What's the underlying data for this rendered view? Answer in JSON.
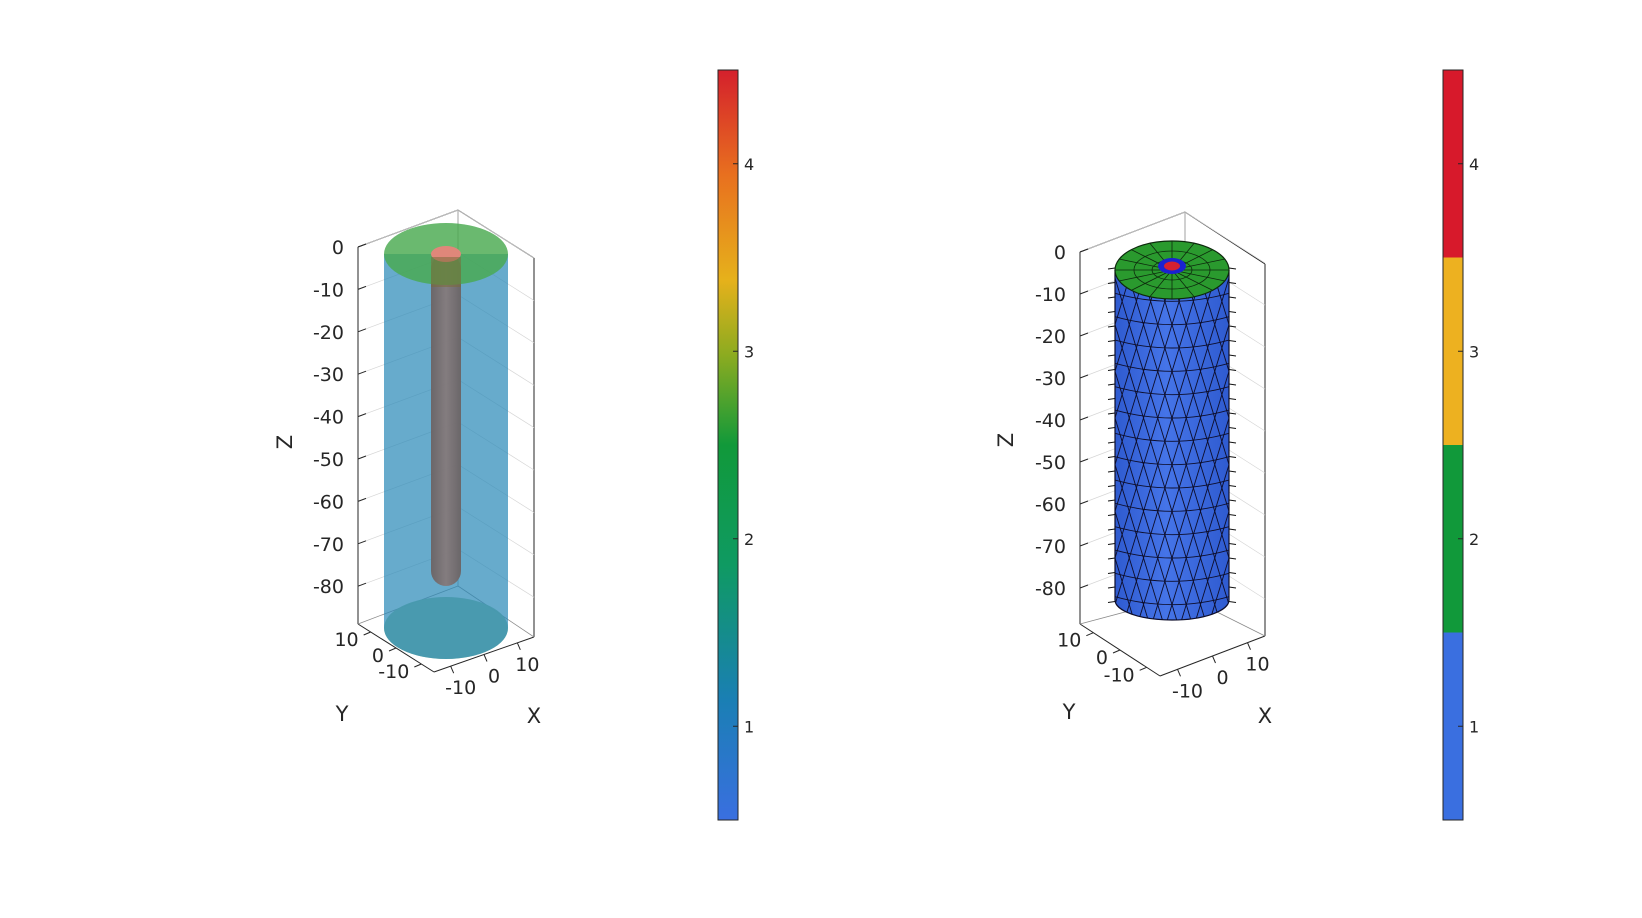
{
  "chart_data": [
    {
      "type": "3d-surface",
      "xlabel": "X",
      "ylabel": "Y",
      "zlabel": "Z",
      "x_ticks": [
        "-10",
        "0",
        "10"
      ],
      "y_ticks": [
        "-10",
        "0",
        "10"
      ],
      "z_ticks": [
        "0",
        "-10",
        "-20",
        "-30",
        "-40",
        "-50",
        "-60",
        "-70",
        "-80"
      ],
      "colorbar": {
        "type": "continuous",
        "ticks": [
          "1",
          "2",
          "3",
          "4"
        ],
        "range": [
          0.5,
          4.5
        ],
        "colormap": [
          "#3a6fe0",
          "#0f8a97",
          "#11993a",
          "#8cab20",
          "#e6b11b",
          "#e8701f",
          "#d4202c"
        ]
      },
      "colors": {
        "outer_cylinder": "#2c8bb8",
        "caps": "#49a94f",
        "inner_rod": "#7c6f70",
        "inner_rod_top": "#e0877a"
      }
    },
    {
      "type": "3d-mesh",
      "xlabel": "X",
      "ylabel": "Y",
      "zlabel": "Z",
      "x_ticks": [
        "-10",
        "0",
        "10"
      ],
      "y_ticks": [
        "-10",
        "0",
        "10"
      ],
      "z_ticks": [
        "0",
        "-10",
        "-20",
        "-30",
        "-40",
        "-50",
        "-60",
        "-70",
        "-80"
      ],
      "colorbar": {
        "type": "discrete",
        "ticks": [
          "1",
          "2",
          "3",
          "4"
        ],
        "range": [
          0.5,
          4.5
        ],
        "colors": [
          "#3a6fe0",
          "#11993a",
          "#edb120",
          "#d7192b"
        ]
      },
      "colors": {
        "mesh_side": "#3c68e0",
        "mesh_top": "#2a9a2e",
        "inner_ring": "#1a22d0",
        "center": "#d42030"
      }
    }
  ]
}
